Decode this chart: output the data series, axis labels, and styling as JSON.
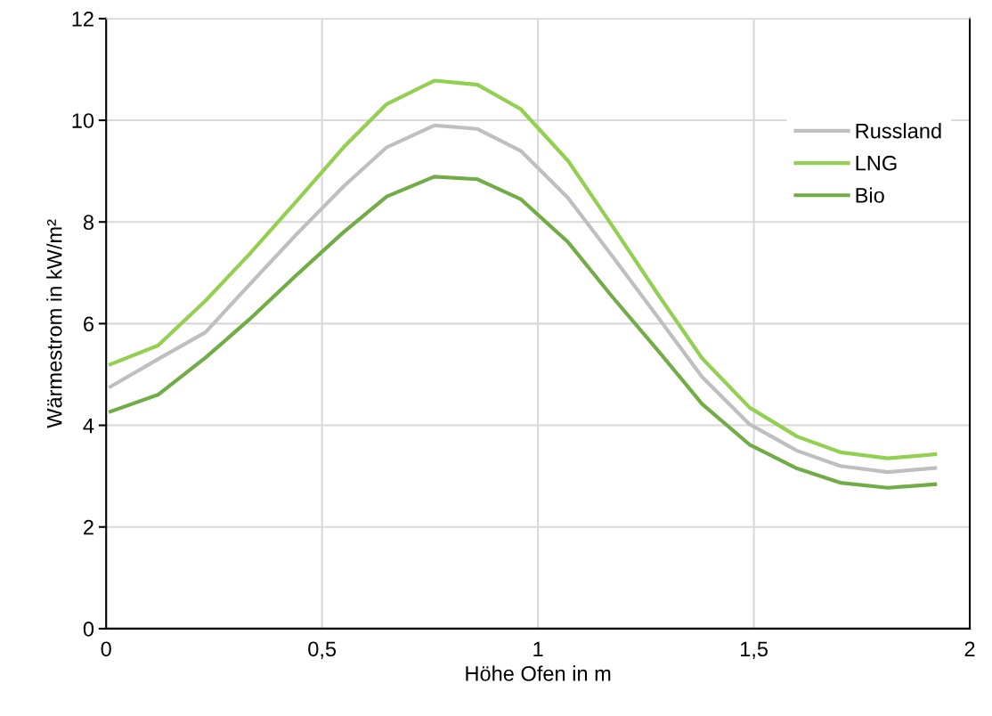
{
  "chart_data": {
    "type": "line",
    "xlabel": "Höhe Ofen in m",
    "ylabel": "Wärmestrom in kW/m²",
    "x": [
      0.01,
      0.12,
      0.23,
      0.33,
      0.44,
      0.55,
      0.65,
      0.76,
      0.86,
      0.96,
      1.07,
      1.17,
      1.28,
      1.38,
      1.49,
      1.6,
      1.7,
      1.81,
      1.92
    ],
    "series": [
      {
        "name": "Russland",
        "color": "#bfbfbf",
        "values": [
          4.76,
          5.3,
          5.83,
          6.75,
          7.75,
          8.7,
          9.47,
          9.9,
          9.83,
          9.4,
          8.47,
          7.35,
          6.1,
          4.95,
          4.02,
          3.5,
          3.2,
          3.08,
          3.16
        ]
      },
      {
        "name": "LNG",
        "color": "#92d050",
        "values": [
          5.2,
          5.57,
          6.45,
          7.35,
          8.4,
          9.47,
          10.32,
          10.78,
          10.7,
          10.22,
          9.2,
          7.95,
          6.55,
          5.32,
          4.35,
          3.78,
          3.47,
          3.35,
          3.43
        ]
      },
      {
        "name": "Bio",
        "color": "#70ad47",
        "values": [
          4.27,
          4.6,
          5.33,
          6.07,
          6.95,
          7.8,
          8.5,
          8.89,
          8.84,
          8.45,
          7.6,
          6.55,
          5.45,
          4.42,
          3.62,
          3.15,
          2.87,
          2.77,
          2.84
        ]
      }
    ],
    "xlim": [
      0,
      2
    ],
    "xticks": [
      0,
      {
        "value": 0.5,
        "label": "0,5"
      },
      1,
      {
        "value": 1.5,
        "label": "1,5"
      },
      2
    ],
    "ylim": [
      0,
      12
    ],
    "yticks": [
      0,
      2,
      4,
      6,
      8,
      10,
      12
    ],
    "grid": true,
    "legend": "upper right",
    "marker": "none",
    "line_style": "solid"
  }
}
